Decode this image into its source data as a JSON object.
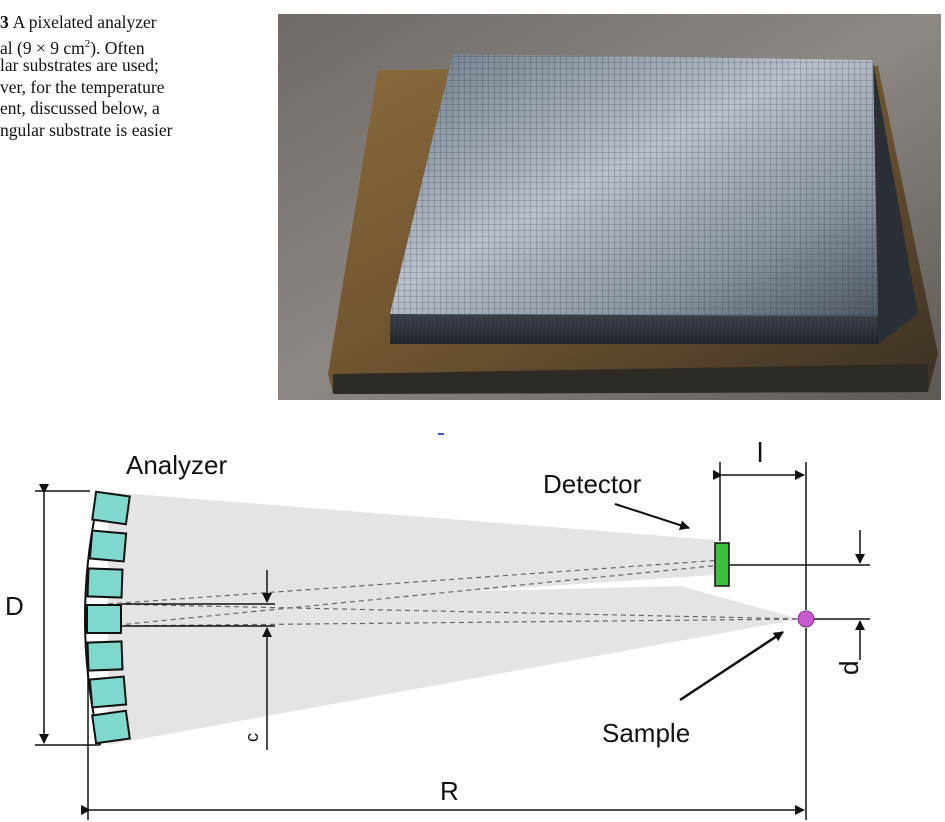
{
  "caption": {
    "fig_label": "3",
    "lines": [
      "A pixelated analyzer",
      "al (9 × 9 cm",
      "lar substrates are used;",
      "ver, for the temperature",
      "ent, discussed below, a",
      "ngular substrate is easier"
    ],
    "superscript": "2",
    "line2_tail": "). Often"
  },
  "diagram": {
    "labels": {
      "analyzer": "Analyzer",
      "detector": "Detector",
      "sample": "Sample",
      "D": "D",
      "R": "R",
      "l": "l",
      "d": "d",
      "c": "c"
    },
    "colors": {
      "crystal": "#7fd8cc",
      "detector": "#3fbf3f",
      "sample": "#c85ad0",
      "beam": "#e4e4e4"
    }
  }
}
